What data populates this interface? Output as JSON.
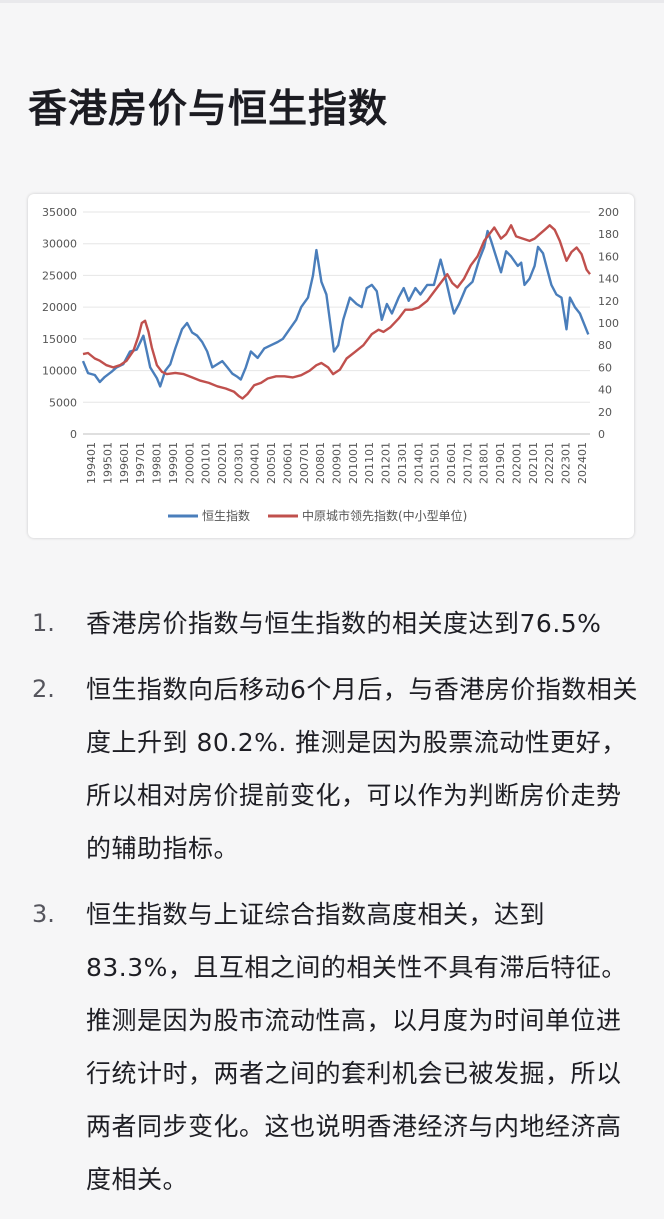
{
  "page": {
    "title": "香港房价与恒生指数"
  },
  "chart_data": {
    "type": "line",
    "x_labels": [
      "199401",
      "199501",
      "199601",
      "199701",
      "199801",
      "199901",
      "200001",
      "200101",
      "200201",
      "200301",
      "200401",
      "200501",
      "200601",
      "200701",
      "200801",
      "200901",
      "201001",
      "201101",
      "201201",
      "201301",
      "201401",
      "201501",
      "201601",
      "201701",
      "201801",
      "201901",
      "202001",
      "202101",
      "202201",
      "202301",
      "202401"
    ],
    "y_left": {
      "ticks": [
        0,
        5000,
        10000,
        15000,
        20000,
        25000,
        30000,
        35000
      ],
      "range": [
        0,
        35000
      ]
    },
    "y_right": {
      "ticks": [
        0,
        20,
        40,
        60,
        80,
        100,
        120,
        140,
        160,
        180,
        200
      ],
      "range": [
        0,
        200
      ]
    },
    "legend_position": "bottom",
    "grid": "horizontal",
    "series": [
      {
        "name": "恒生指数",
        "axis": "left",
        "color": "#4a7ebb",
        "points": [
          [
            1994.0,
            11500
          ],
          [
            1994.3,
            9600
          ],
          [
            1994.7,
            9300
          ],
          [
            1995.0,
            8200
          ],
          [
            1995.3,
            9000
          ],
          [
            1995.7,
            9800
          ],
          [
            1996.0,
            10500
          ],
          [
            1996.4,
            11000
          ],
          [
            1996.8,
            13000
          ],
          [
            1997.2,
            13300
          ],
          [
            1997.6,
            15500
          ],
          [
            1997.8,
            13000
          ],
          [
            1998.0,
            10500
          ],
          [
            1998.4,
            8800
          ],
          [
            1998.6,
            7500
          ],
          [
            1998.9,
            10000
          ],
          [
            1999.2,
            11000
          ],
          [
            1999.5,
            13500
          ],
          [
            1999.9,
            16500
          ],
          [
            2000.2,
            17500
          ],
          [
            2000.5,
            16000
          ],
          [
            2000.8,
            15500
          ],
          [
            2001.1,
            14500
          ],
          [
            2001.4,
            13000
          ],
          [
            2001.7,
            10500
          ],
          [
            2002.0,
            11000
          ],
          [
            2002.3,
            11500
          ],
          [
            2002.6,
            10500
          ],
          [
            2002.9,
            9500
          ],
          [
            2003.2,
            9000
          ],
          [
            2003.4,
            8600
          ],
          [
            2003.7,
            10500
          ],
          [
            2004.0,
            13000
          ],
          [
            2004.4,
            12000
          ],
          [
            2004.8,
            13500
          ],
          [
            2005.2,
            14000
          ],
          [
            2005.6,
            14500
          ],
          [
            2005.9,
            15000
          ],
          [
            2006.3,
            16500
          ],
          [
            2006.7,
            18000
          ],
          [
            2007.0,
            20000
          ],
          [
            2007.4,
            21500
          ],
          [
            2007.7,
            25000
          ],
          [
            2007.9,
            29000
          ],
          [
            2008.2,
            24000
          ],
          [
            2008.5,
            22000
          ],
          [
            2008.8,
            16000
          ],
          [
            2008.95,
            13000
          ],
          [
            2009.2,
            14000
          ],
          [
            2009.5,
            18000
          ],
          [
            2009.9,
            21500
          ],
          [
            2010.3,
            20500
          ],
          [
            2010.6,
            20000
          ],
          [
            2010.9,
            23000
          ],
          [
            2011.2,
            23500
          ],
          [
            2011.5,
            22500
          ],
          [
            2011.8,
            18000
          ],
          [
            2012.1,
            20500
          ],
          [
            2012.4,
            19000
          ],
          [
            2012.8,
            21500
          ],
          [
            2013.1,
            23000
          ],
          [
            2013.4,
            21000
          ],
          [
            2013.8,
            23000
          ],
          [
            2014.1,
            22000
          ],
          [
            2014.5,
            23500
          ],
          [
            2014.9,
            23500
          ],
          [
            2015.3,
            27500
          ],
          [
            2015.6,
            24500
          ],
          [
            2015.9,
            21000
          ],
          [
            2016.1,
            19000
          ],
          [
            2016.4,
            20500
          ],
          [
            2016.8,
            23000
          ],
          [
            2017.2,
            24000
          ],
          [
            2017.6,
            27500
          ],
          [
            2017.9,
            29500
          ],
          [
            2018.1,
            32000
          ],
          [
            2018.3,
            30500
          ],
          [
            2018.6,
            28000
          ],
          [
            2018.9,
            25500
          ],
          [
            2019.2,
            28800
          ],
          [
            2019.5,
            28000
          ],
          [
            2019.9,
            26500
          ],
          [
            2020.1,
            27000
          ],
          [
            2020.3,
            23500
          ],
          [
            2020.6,
            24500
          ],
          [
            2020.9,
            26500
          ],
          [
            2021.1,
            29500
          ],
          [
            2021.4,
            28500
          ],
          [
            2021.7,
            25500
          ],
          [
            2021.9,
            23500
          ],
          [
            2022.2,
            22000
          ],
          [
            2022.5,
            21500
          ],
          [
            2022.8,
            16500
          ],
          [
            2023.0,
            21500
          ],
          [
            2023.3,
            20000
          ],
          [
            2023.6,
            19000
          ],
          [
            2023.9,
            17000
          ],
          [
            2024.1,
            15700
          ]
        ]
      },
      {
        "name": "中原城市领先指数(中小型单位)",
        "axis": "right",
        "color": "#c0504d",
        "points": [
          [
            1994.0,
            72
          ],
          [
            1994.3,
            73
          ],
          [
            1994.7,
            68
          ],
          [
            1995.0,
            66
          ],
          [
            1995.4,
            62
          ],
          [
            1995.8,
            60
          ],
          [
            1996.2,
            62
          ],
          [
            1996.6,
            66
          ],
          [
            1997.0,
            75
          ],
          [
            1997.3,
            88
          ],
          [
            1997.5,
            100
          ],
          [
            1997.7,
            102
          ],
          [
            1997.9,
            92
          ],
          [
            1998.1,
            78
          ],
          [
            1998.4,
            62
          ],
          [
            1998.7,
            56
          ],
          [
            1999.0,
            54
          ],
          [
            1999.5,
            55
          ],
          [
            2000.0,
            54
          ],
          [
            2000.5,
            51
          ],
          [
            2001.0,
            48
          ],
          [
            2001.5,
            46
          ],
          [
            2002.0,
            43
          ],
          [
            2002.5,
            41
          ],
          [
            2003.0,
            38
          ],
          [
            2003.3,
            34
          ],
          [
            2003.5,
            32
          ],
          [
            2003.8,
            36
          ],
          [
            2004.2,
            44
          ],
          [
            2004.6,
            46
          ],
          [
            2005.0,
            50
          ],
          [
            2005.5,
            52
          ],
          [
            2006.0,
            52
          ],
          [
            2006.5,
            51
          ],
          [
            2007.0,
            53
          ],
          [
            2007.5,
            57
          ],
          [
            2007.9,
            62
          ],
          [
            2008.2,
            64
          ],
          [
            2008.6,
            60
          ],
          [
            2008.9,
            54
          ],
          [
            2009.3,
            58
          ],
          [
            2009.7,
            68
          ],
          [
            2010.2,
            74
          ],
          [
            2010.7,
            80
          ],
          [
            2011.2,
            90
          ],
          [
            2011.6,
            94
          ],
          [
            2011.9,
            92
          ],
          [
            2012.3,
            96
          ],
          [
            2012.8,
            104
          ],
          [
            2013.2,
            112
          ],
          [
            2013.6,
            112
          ],
          [
            2014.0,
            114
          ],
          [
            2014.5,
            120
          ],
          [
            2014.9,
            128
          ],
          [
            2015.3,
            136
          ],
          [
            2015.7,
            144
          ],
          [
            2016.0,
            136
          ],
          [
            2016.3,
            132
          ],
          [
            2016.7,
            140
          ],
          [
            2017.1,
            152
          ],
          [
            2017.5,
            160
          ],
          [
            2017.9,
            174
          ],
          [
            2018.2,
            180
          ],
          [
            2018.5,
            186
          ],
          [
            2018.9,
            176
          ],
          [
            2019.2,
            180
          ],
          [
            2019.5,
            188
          ],
          [
            2019.8,
            178
          ],
          [
            2020.2,
            176
          ],
          [
            2020.6,
            174
          ],
          [
            2020.9,
            176
          ],
          [
            2021.2,
            180
          ],
          [
            2021.5,
            184
          ],
          [
            2021.8,
            188
          ],
          [
            2022.1,
            184
          ],
          [
            2022.4,
            174
          ],
          [
            2022.8,
            156
          ],
          [
            2023.1,
            164
          ],
          [
            2023.4,
            168
          ],
          [
            2023.7,
            162
          ],
          [
            2024.0,
            148
          ],
          [
            2024.2,
            144
          ]
        ]
      }
    ]
  },
  "points": [
    {
      "num": "1.",
      "text": "香港房价指数与恒生指数的相关度达到76.5%"
    },
    {
      "num": "2.",
      "text": "恒生指数向后移动6个月后，与香港房价指数相关度上升到 80.2%. 推测是因为股票流动性更好，所以相对房价提前变化，可以作为判断房价走势的辅助指标。"
    },
    {
      "num": "3.",
      "text": "恒生指数与上证综合指数高度相关，达到83.3%，且互相之间的相关性不具有滞后特征。推测是因为股市流动性高，以月度为时间单位进行统计时，两者之间的套利机会已被发掘，所以两者同步变化。这也说明香港经济与内地经济高度相关。"
    }
  ]
}
